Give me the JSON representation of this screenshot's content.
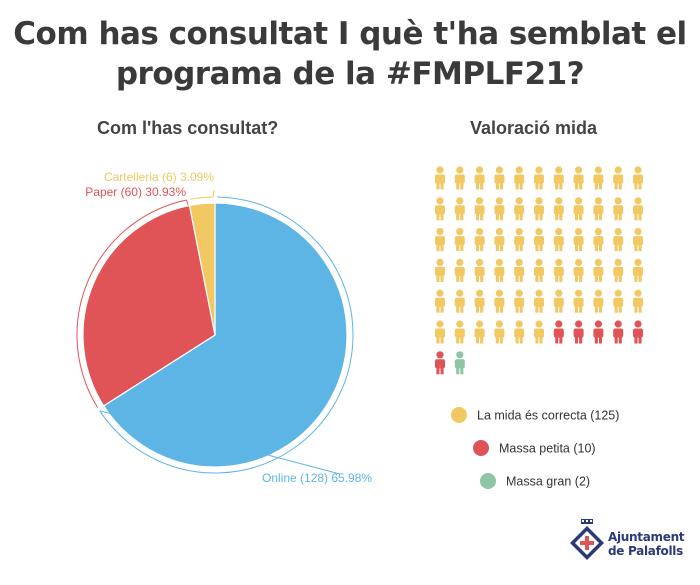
{
  "title_line1": "Com has consultat I què t'ha semblat el",
  "title_line2": "programa de la #FMPLF21?",
  "chart_data": [
    {
      "type": "pie",
      "title": "Com l'has consultat?",
      "categories": [
        "Online",
        "Paper",
        "Cartelleria"
      ],
      "values": [
        128,
        60,
        6
      ],
      "percent_labels": [
        "65.98%",
        "30.93%",
        "3.09%"
      ],
      "labels": [
        "Online (128) 65.98%",
        "Paper (60) 30.93%",
        "Cartelleria (6) 3.09%"
      ],
      "colors": [
        "#5db5e6",
        "#e05356",
        "#f1c862"
      ]
    },
    {
      "type": "pictogram",
      "title": "Valoració mida",
      "categories": [
        "La mida és correcta",
        "Massa petita",
        "Massa gran"
      ],
      "values": [
        125,
        10,
        2
      ],
      "icons_shown": [
        61,
        6,
        1
      ],
      "legend": [
        "La mida és correcta (125)",
        "Massa petita (10)",
        "Massa gran (2)"
      ],
      "colors": [
        "#f1c862",
        "#e05356",
        "#8fc4a4"
      ],
      "icon": "person-icon"
    }
  ],
  "logo": {
    "line1": "Ajuntament",
    "line2": "de Palafolls",
    "icon": "palafolls-crest-icon",
    "color": "#2d3a78",
    "accent": "#e05356"
  }
}
